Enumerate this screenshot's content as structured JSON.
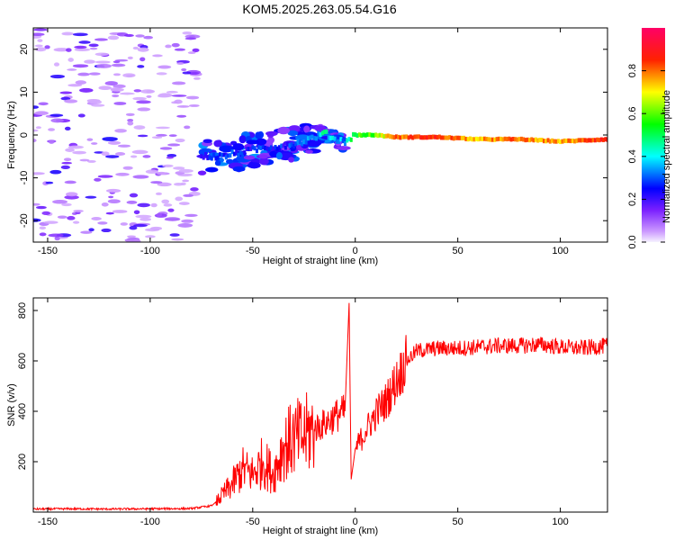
{
  "title": "KOM5.2025.263.05.54.G16",
  "chart_data": [
    {
      "type": "heatmap",
      "xlabel": "Height of straight line (km)",
      "ylabel": "Frequency (Hz)",
      "xlim": [
        -157,
        123
      ],
      "ylim": [
        -25,
        25
      ],
      "x_ticks": [
        -150,
        -100,
        -50,
        0,
        50,
        100
      ],
      "y_ticks": [
        -20,
        -10,
        0,
        10,
        20
      ],
      "colorbar": {
        "label": "Normalized spectral amplitude",
        "range": [
          0,
          1
        ],
        "ticks": [
          0.0,
          0.2,
          0.4,
          0.6,
          0.8
        ],
        "colors": [
          "#f6f2ff",
          "#a866ff",
          "#0033ff",
          "#00ffff",
          "#00ff00",
          "#ffff00",
          "#ff0000",
          "#ff0066"
        ]
      },
      "ridge": {
        "x": [
          -75,
          -65,
          -55,
          -45,
          -35,
          -25,
          -20,
          -15,
          -10,
          -5,
          0,
          10,
          20,
          40,
          60,
          80,
          100,
          123
        ],
        "y": [
          -5,
          -5,
          -4,
          -3,
          -2.5,
          -1.5,
          -0.5,
          0.5,
          -1,
          -1.5,
          0,
          0,
          -0.5,
          -0.5,
          -1,
          -1,
          -1.5,
          -1
        ],
        "amplitude": [
          0.25,
          0.3,
          0.25,
          0.25,
          0.25,
          0.3,
          0.3,
          0.45,
          0.35,
          0.35,
          0.55,
          0.6,
          0.8,
          0.85,
          0.75,
          0.8,
          0.75,
          0.85
        ]
      },
      "noise_region_x": [
        -157,
        -77
      ]
    },
    {
      "type": "line",
      "xlabel": "Height of straight line (km)",
      "ylabel": "SNR (v/v)",
      "xlim": [
        -157,
        123
      ],
      "ylim": [
        0,
        850
      ],
      "x_ticks": [
        -150,
        -100,
        -50,
        0,
        50,
        100
      ],
      "y_ticks": [
        200,
        400,
        600,
        800
      ],
      "color": "#ff0000",
      "series": [
        {
          "name": "SNR",
          "x": [
            -157,
            -140,
            -120,
            -100,
            -80,
            -70,
            -68,
            -60,
            -55,
            -50,
            -45,
            -40,
            -35,
            -30,
            -25,
            -20,
            -15,
            -10,
            -5,
            -3,
            -2,
            0,
            5,
            10,
            15,
            20,
            25,
            30,
            40,
            50,
            60,
            70,
            80,
            90,
            100,
            110,
            123
          ],
          "y": [
            12,
            13,
            12,
            13,
            14,
            25,
            40,
            110,
            170,
            150,
            200,
            150,
            260,
            290,
            300,
            330,
            350,
            380,
            400,
            830,
            130,
            250,
            320,
            390,
            440,
            520,
            600,
            640,
            650,
            650,
            655,
            660,
            660,
            665,
            655,
            650,
            660
          ]
        }
      ]
    }
  ]
}
